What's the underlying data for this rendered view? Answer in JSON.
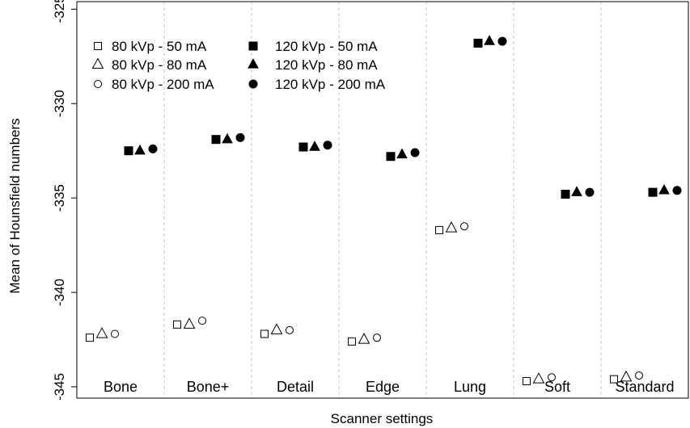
{
  "chart_data": {
    "type": "scatter",
    "xlabel": "Scanner settings",
    "ylabel": "Mean of Hounsfield numbers",
    "ylim": [
      -345.6,
      -324.6
    ],
    "yticks": [
      -325,
      -330,
      -335,
      -340,
      -345
    ],
    "ytick_labels": [
      "-325",
      "-330",
      "-335",
      "-340",
      "-345"
    ],
    "categories": [
      "Bone",
      "Bone+",
      "Detail",
      "Edge",
      "Lung",
      "Soft",
      "Standard"
    ],
    "vertical_dashed_separators": true,
    "legend_position": "top-left",
    "series": [
      {
        "name": "80 kVp - 50 mA",
        "marker": "open-square",
        "values": [
          -342.4,
          -341.7,
          -342.2,
          -342.6,
          -336.7,
          -344.7,
          -344.6
        ]
      },
      {
        "name": "80 kVp - 80 mA",
        "marker": "open-triangle",
        "values": [
          -342.2,
          -341.7,
          -342.0,
          -342.5,
          -336.6,
          -344.6,
          -344.5
        ]
      },
      {
        "name": "80 kVp - 200 mA",
        "marker": "open-circle",
        "values": [
          -342.2,
          -341.5,
          -342.0,
          -342.4,
          -336.5,
          -344.5,
          -344.4
        ]
      },
      {
        "name": "120 kVp - 50 mA",
        "marker": "filled-square",
        "values": [
          -332.5,
          -331.9,
          -332.3,
          -332.8,
          -326.8,
          -334.8,
          -334.7
        ]
      },
      {
        "name": "120 kVp - 80 mA",
        "marker": "filled-triangle",
        "values": [
          -332.5,
          -331.9,
          -332.3,
          -332.7,
          -326.7,
          -334.7,
          -334.6
        ]
      },
      {
        "name": "120 kVp - 200 mA",
        "marker": "filled-circle",
        "values": [
          -332.4,
          -331.8,
          -332.2,
          -332.6,
          -326.7,
          -334.7,
          -334.6
        ]
      }
    ]
  }
}
